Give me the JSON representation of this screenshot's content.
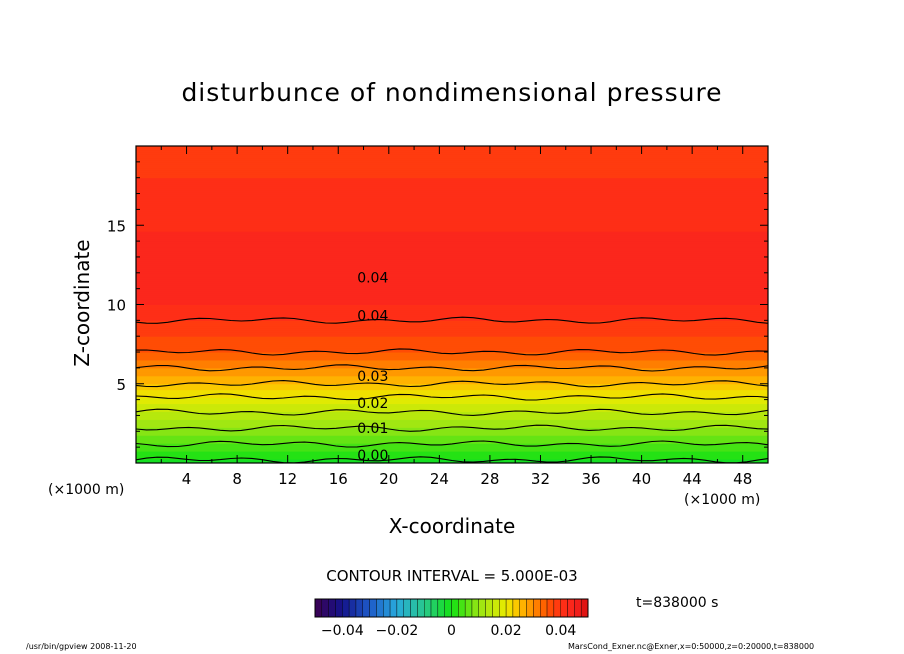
{
  "chart_data": {
    "type": "heatmap",
    "title": "disturbunce of nondimensional pressure",
    "xlabel": "X-coordinate",
    "ylabel": "Z-coordinate",
    "x_unit": "(×1000 m)",
    "y_unit": "(×1000 m)",
    "xlim": [
      0,
      50
    ],
    "ylim": [
      0,
      20
    ],
    "x_ticks": [
      4,
      8,
      12,
      16,
      20,
      24,
      28,
      32,
      36,
      40,
      44,
      48
    ],
    "y_ticks": [
      5,
      10,
      15
    ],
    "contour_interval": 0.005,
    "contour_interval_label": "CONTOUR INTERVAL = 5.000E-03",
    "time_label": "t=838000 s",
    "colorbar": {
      "min": -0.05,
      "max": 0.05,
      "tick_values": [
        -0.04,
        -0.02,
        0,
        0.02,
        0.04
      ],
      "tick_labels": [
        "−0.04",
        "−0.02",
        "0",
        "0.02",
        "0.04"
      ]
    },
    "vertical_profile": {
      "z": [
        0,
        1,
        2,
        3,
        4,
        5,
        6,
        7,
        8,
        10,
        12,
        14,
        16,
        18,
        20
      ],
      "value": [
        -0.001,
        0.004,
        0.009,
        0.014,
        0.019,
        0.025,
        0.03,
        0.035,
        0.0375,
        0.0425,
        0.044,
        0.043,
        0.0415,
        0.04,
        0.039
      ]
    },
    "contour_labels": [
      {
        "text": "0.00",
        "x": 17.5,
        "z": 0.5
      },
      {
        "text": "0.01",
        "x": 17.5,
        "z": 2.2
      },
      {
        "text": "0.02",
        "x": 17.5,
        "z": 3.8
      },
      {
        "text": "0.03",
        "x": 17.5,
        "z": 5.5
      },
      {
        "text": "0.04",
        "x": 17.5,
        "z": 9.3
      },
      {
        "text": "0.04",
        "x": 17.5,
        "z": 11.7
      }
    ]
  },
  "footer": {
    "left": "/usr/bin/gpview   2008-11-20",
    "right": "MarsCond_Exner.nc@Exner,x=0:50000,z=0:20000,t=838000"
  }
}
